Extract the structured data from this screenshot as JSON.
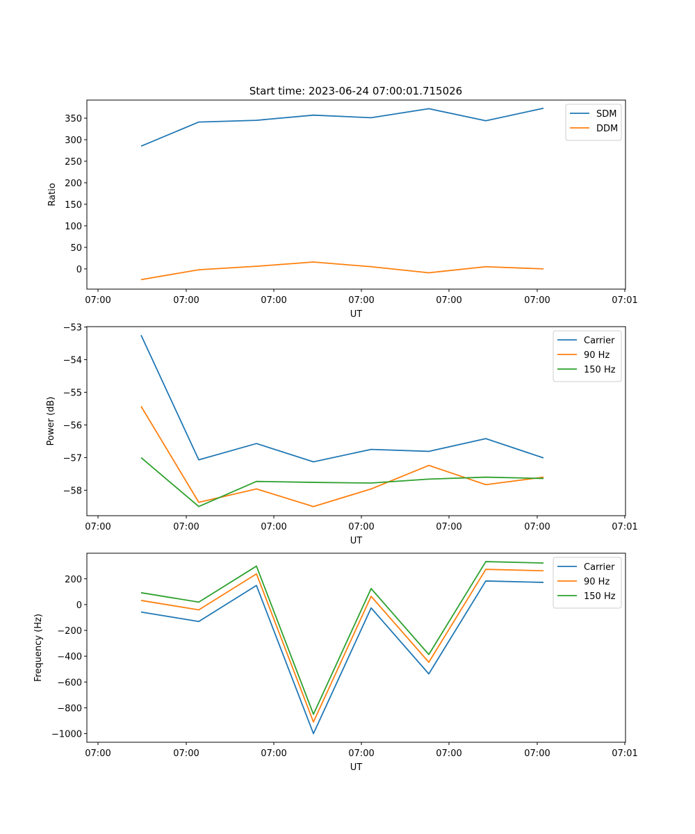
{
  "title": "Start time: 2023-06-24 07:00:01.715026",
  "colors": {
    "blue": "#1f77b4",
    "orange": "#ff7f0e",
    "green": "#2ca02c"
  },
  "chart_data": [
    {
      "type": "line",
      "title": "Start time: 2023-06-24 07:00:01.715026",
      "xlabel": "UT",
      "ylabel": "Ratio",
      "x_tick_labels": [
        "07:00",
        "07:00",
        "07:00",
        "07:00",
        "07:00",
        "07:00",
        "07:00",
        "07:01"
      ],
      "y_ticks": [
        0,
        50,
        100,
        150,
        200,
        250,
        300,
        350
      ],
      "ylim": [
        -47,
        392
      ],
      "grid": false,
      "legend_position": "top-right",
      "series": [
        {
          "name": "SDM",
          "color": "#1f77b4",
          "values": [
            285,
            341,
            345,
            357,
            351,
            372,
            344,
            373
          ]
        },
        {
          "name": "DDM",
          "color": "#ff7f0e",
          "values": [
            -25,
            -2,
            6,
            16,
            5,
            -9,
            5,
            0
          ]
        }
      ]
    },
    {
      "type": "line",
      "xlabel": "UT",
      "ylabel": "Power (dB)",
      "x_tick_labels": [
        "07:00",
        "07:00",
        "07:00",
        "07:00",
        "07:00",
        "07:00",
        "07:00",
        "07:01"
      ],
      "y_ticks": [
        -58,
        -57,
        -56,
        -55,
        -54,
        -53
      ],
      "y_tick_labels": [
        "−58",
        "−57",
        "−56",
        "−55",
        "−54",
        "−53"
      ],
      "ylim": [
        -58.78,
        -52.99
      ],
      "grid": false,
      "legend_position": "top-right",
      "series": [
        {
          "name": "Carrier",
          "color": "#1f77b4",
          "values": [
            -53.25,
            -57.07,
            -56.57,
            -57.13,
            -56.75,
            -56.81,
            -56.42,
            -57.01
          ]
        },
        {
          "name": "90 Hz",
          "color": "#ff7f0e",
          "values": [
            -55.43,
            -58.37,
            -57.96,
            -58.5,
            -57.96,
            -57.24,
            -57.83,
            -57.6
          ]
        },
        {
          "name": "150 Hz",
          "color": "#2ca02c",
          "values": [
            -57.0,
            -58.5,
            -57.73,
            -57.76,
            -57.78,
            -57.66,
            -57.6,
            -57.64
          ]
        }
      ]
    },
    {
      "type": "line",
      "xlabel": "UT",
      "ylabel": "Frequency (Hz)",
      "x_tick_labels": [
        "07:00",
        "07:00",
        "07:00",
        "07:00",
        "07:00",
        "07:00",
        "07:00",
        "07:01"
      ],
      "y_ticks": [
        -1000,
        -800,
        -600,
        -400,
        -200,
        0,
        200
      ],
      "y_tick_labels": [
        "−1000",
        "−800",
        "−600",
        "−400",
        "−200",
        "0",
        "200"
      ],
      "ylim": [
        -1067,
        398
      ],
      "grid": false,
      "legend_position": "top-right",
      "series": [
        {
          "name": "Carrier",
          "color": "#1f77b4",
          "values": [
            -58,
            -131,
            148,
            -1000,
            -26,
            -537,
            183,
            172
          ]
        },
        {
          "name": "90 Hz",
          "color": "#ff7f0e",
          "values": [
            32,
            -41,
            238,
            -910,
            64,
            -447,
            273,
            262
          ]
        },
        {
          "name": "150 Hz",
          "color": "#2ca02c",
          "values": [
            92,
            19,
            298,
            -850,
            124,
            -387,
            333,
            322
          ]
        }
      ]
    }
  ]
}
